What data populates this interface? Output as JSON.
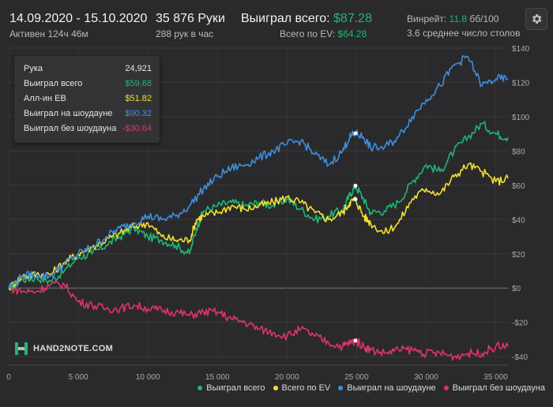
{
  "header": {
    "date_range": "14.09.2020 - 15.10.2020",
    "active_time": "Активен 124ч 46м",
    "hands_count": "35 876 Руки",
    "hands_per_hour": "288 рук в час",
    "won_total_label": "Выиграл всего:",
    "won_total_value": "$87.28",
    "ev_label": "Всего по EV:",
    "ev_value": "$64.28",
    "winrate_label": "Винрейт:",
    "winrate_value": "11.8",
    "winrate_unit": "бб/100",
    "avg_tables": "3.6 среднее число столов"
  },
  "tooltip": {
    "rows": [
      {
        "label": "Рука",
        "value": "24,921",
        "color": "#e6e6e6"
      },
      {
        "label": "Выиграл всего",
        "value": "$59.68",
        "color": "#21b573"
      },
      {
        "label": "Алл-ин ЕВ",
        "value": "$51.82",
        "color": "#f0e130"
      },
      {
        "label": "Выиграл на шоудауне",
        "value": "$90.32",
        "color": "#3d8fe0"
      },
      {
        "label": "Выиграл без шоудауна",
        "value": "-$30.64",
        "color": "#e0336a"
      }
    ]
  },
  "logo": {
    "text": "HAND2NOTE.COM",
    "icon": "h2n-logo-icon"
  },
  "icons": {
    "settings": "gear-icon"
  },
  "colors": {
    "won_total": "#21b573",
    "ev": "#f0e130",
    "showdown": "#3d8fe0",
    "non_showdown": "#e0336a",
    "background": "#2a2a2c"
  },
  "chart_data": {
    "type": "line",
    "xlim": [
      0,
      35876
    ],
    "ylim": [
      -45,
      140
    ],
    "x_ticks": [
      0,
      5000,
      10000,
      15000,
      20000,
      25000,
      30000,
      35000
    ],
    "x_tick_labels": [
      "0",
      "5 000",
      "10 000",
      "15 000",
      "20 000",
      "25 000",
      "30 000",
      "35 000"
    ],
    "y_ticks": [
      -40,
      -20,
      0,
      20,
      40,
      60,
      80,
      100,
      120,
      140
    ],
    "y_tick_labels": [
      "-$40",
      "-$20",
      "$0",
      "$20",
      "$40",
      "$60",
      "$80",
      "$100",
      "$120",
      "$140"
    ],
    "legend_position": "bottom-right",
    "highlight_x": 24921,
    "series": [
      {
        "name": "Выиграл всего",
        "color": "#21b573",
        "points": [
          [
            0,
            0
          ],
          [
            1000,
            5
          ],
          [
            2000,
            6
          ],
          [
            3000,
            4
          ],
          [
            4000,
            10
          ],
          [
            5000,
            18
          ],
          [
            6000,
            20
          ],
          [
            7000,
            25
          ],
          [
            8000,
            30
          ],
          [
            9000,
            35
          ],
          [
            10000,
            30
          ],
          [
            11000,
            28
          ],
          [
            12000,
            25
          ],
          [
            13000,
            20
          ],
          [
            13500,
            35
          ],
          [
            14000,
            45
          ],
          [
            15000,
            48
          ],
          [
            16000,
            50
          ],
          [
            17000,
            48
          ],
          [
            18000,
            50
          ],
          [
            19000,
            48
          ],
          [
            20000,
            52
          ],
          [
            21000,
            46
          ],
          [
            22000,
            40
          ],
          [
            23000,
            42
          ],
          [
            24000,
            46
          ],
          [
            24500,
            54
          ],
          [
            24921,
            59.68
          ],
          [
            25500,
            52
          ],
          [
            26000,
            44
          ],
          [
            27000,
            45
          ],
          [
            28000,
            50
          ],
          [
            29000,
            62
          ],
          [
            30000,
            72
          ],
          [
            31000,
            68
          ],
          [
            32000,
            80
          ],
          [
            33000,
            88
          ],
          [
            34000,
            96
          ],
          [
            35000,
            90
          ],
          [
            35876,
            88
          ]
        ]
      },
      {
        "name": "Всего по EV",
        "color": "#f0e130",
        "points": [
          [
            0,
            0
          ],
          [
            1000,
            7
          ],
          [
            2000,
            8
          ],
          [
            3000,
            8
          ],
          [
            4000,
            15
          ],
          [
            5000,
            20
          ],
          [
            6000,
            24
          ],
          [
            7000,
            28
          ],
          [
            8000,
            32
          ],
          [
            9000,
            36
          ],
          [
            10000,
            38
          ],
          [
            11000,
            30
          ],
          [
            12000,
            28
          ],
          [
            13000,
            28
          ],
          [
            13500,
            40
          ],
          [
            14000,
            42
          ],
          [
            15000,
            44
          ],
          [
            16000,
            48
          ],
          [
            17000,
            46
          ],
          [
            18000,
            48
          ],
          [
            19000,
            50
          ],
          [
            20000,
            53
          ],
          [
            21000,
            50
          ],
          [
            22000,
            44
          ],
          [
            23000,
            40
          ],
          [
            24000,
            44
          ],
          [
            24500,
            50
          ],
          [
            24921,
            51.82
          ],
          [
            25500,
            42
          ],
          [
            26000,
            38
          ],
          [
            27000,
            32
          ],
          [
            28000,
            38
          ],
          [
            29000,
            52
          ],
          [
            30000,
            58
          ],
          [
            31000,
            55
          ],
          [
            32000,
            65
          ],
          [
            33000,
            72
          ],
          [
            34000,
            68
          ],
          [
            35000,
            62
          ],
          [
            35876,
            64
          ]
        ]
      },
      {
        "name": "Выиграл на шоудауне",
        "color": "#3d8fe0",
        "points": [
          [
            0,
            0
          ],
          [
            1000,
            7
          ],
          [
            2000,
            8
          ],
          [
            3000,
            7
          ],
          [
            4000,
            14
          ],
          [
            5000,
            20
          ],
          [
            6000,
            24
          ],
          [
            7000,
            30
          ],
          [
            8000,
            35
          ],
          [
            9000,
            38
          ],
          [
            10000,
            42
          ],
          [
            11000,
            40
          ],
          [
            12000,
            42
          ],
          [
            13000,
            48
          ],
          [
            14000,
            58
          ],
          [
            15000,
            65
          ],
          [
            16000,
            70
          ],
          [
            17000,
            72
          ],
          [
            18000,
            76
          ],
          [
            19000,
            80
          ],
          [
            20000,
            84
          ],
          [
            21000,
            86
          ],
          [
            22000,
            78
          ],
          [
            23000,
            72
          ],
          [
            24000,
            80
          ],
          [
            24500,
            88
          ],
          [
            24921,
            90.32
          ],
          [
            25500,
            88
          ],
          [
            26000,
            82
          ],
          [
            27000,
            82
          ],
          [
            28000,
            88
          ],
          [
            29000,
            100
          ],
          [
            30000,
            110
          ],
          [
            31000,
            118
          ],
          [
            32000,
            130
          ],
          [
            33000,
            135
          ],
          [
            34000,
            118
          ],
          [
            35000,
            122
          ],
          [
            35876,
            122
          ]
        ]
      },
      {
        "name": "Выиграл без шоудауна",
        "color": "#e0336a",
        "points": [
          [
            0,
            0
          ],
          [
            1000,
            -2
          ],
          [
            2000,
            -2
          ],
          [
            3000,
            2
          ],
          [
            4000,
            2
          ],
          [
            5000,
            -8
          ],
          [
            6000,
            -10
          ],
          [
            7000,
            -12
          ],
          [
            8000,
            -12
          ],
          [
            9000,
            -10
          ],
          [
            10000,
            -12
          ],
          [
            11000,
            -13
          ],
          [
            12000,
            -14
          ],
          [
            13000,
            -16
          ],
          [
            14000,
            -14
          ],
          [
            15000,
            -14
          ],
          [
            16000,
            -18
          ],
          [
            17000,
            -20
          ],
          [
            18000,
            -24
          ],
          [
            19000,
            -26
          ],
          [
            20000,
            -28
          ],
          [
            21000,
            -24
          ],
          [
            22000,
            -28
          ],
          [
            23000,
            -32
          ],
          [
            24000,
            -34
          ],
          [
            24500,
            -32
          ],
          [
            24921,
            -30.64
          ],
          [
            25500,
            -34
          ],
          [
            26000,
            -36
          ],
          [
            27000,
            -38
          ],
          [
            28000,
            -36
          ],
          [
            29000,
            -36
          ],
          [
            30000,
            -38
          ],
          [
            31000,
            -38
          ],
          [
            32000,
            -40
          ],
          [
            33000,
            -38
          ],
          [
            34000,
            -38
          ],
          [
            35000,
            -34
          ],
          [
            35876,
            -34
          ]
        ]
      }
    ]
  }
}
